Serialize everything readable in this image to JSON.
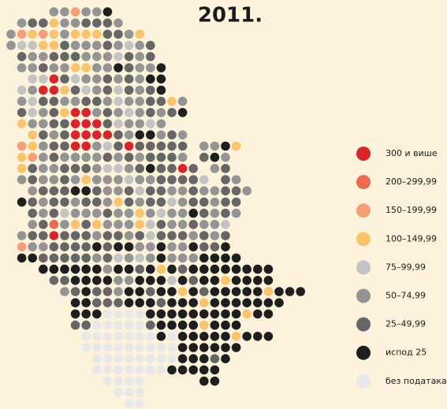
{
  "title": "2011.",
  "legend": [
    {
      "label": "300 и више",
      "color": "#d7262b"
    },
    {
      "label": "200–299,99",
      "color": "#ec6a50"
    },
    {
      "label": "150–199,99",
      "color": "#f3a07a"
    },
    {
      "label": "100–149,99",
      "color": "#fbc46c"
    },
    {
      "label": "75–99,99",
      "color": "#c4c4c4"
    },
    {
      "label": "50–74,99",
      "color": "#949494"
    },
    {
      "label": "25–49,99",
      "color": "#666666"
    },
    {
      "label": "испод 25",
      "color": "#1e1e1e"
    },
    {
      "label": "без података",
      "color": "#e8e8e8"
    }
  ]
}
